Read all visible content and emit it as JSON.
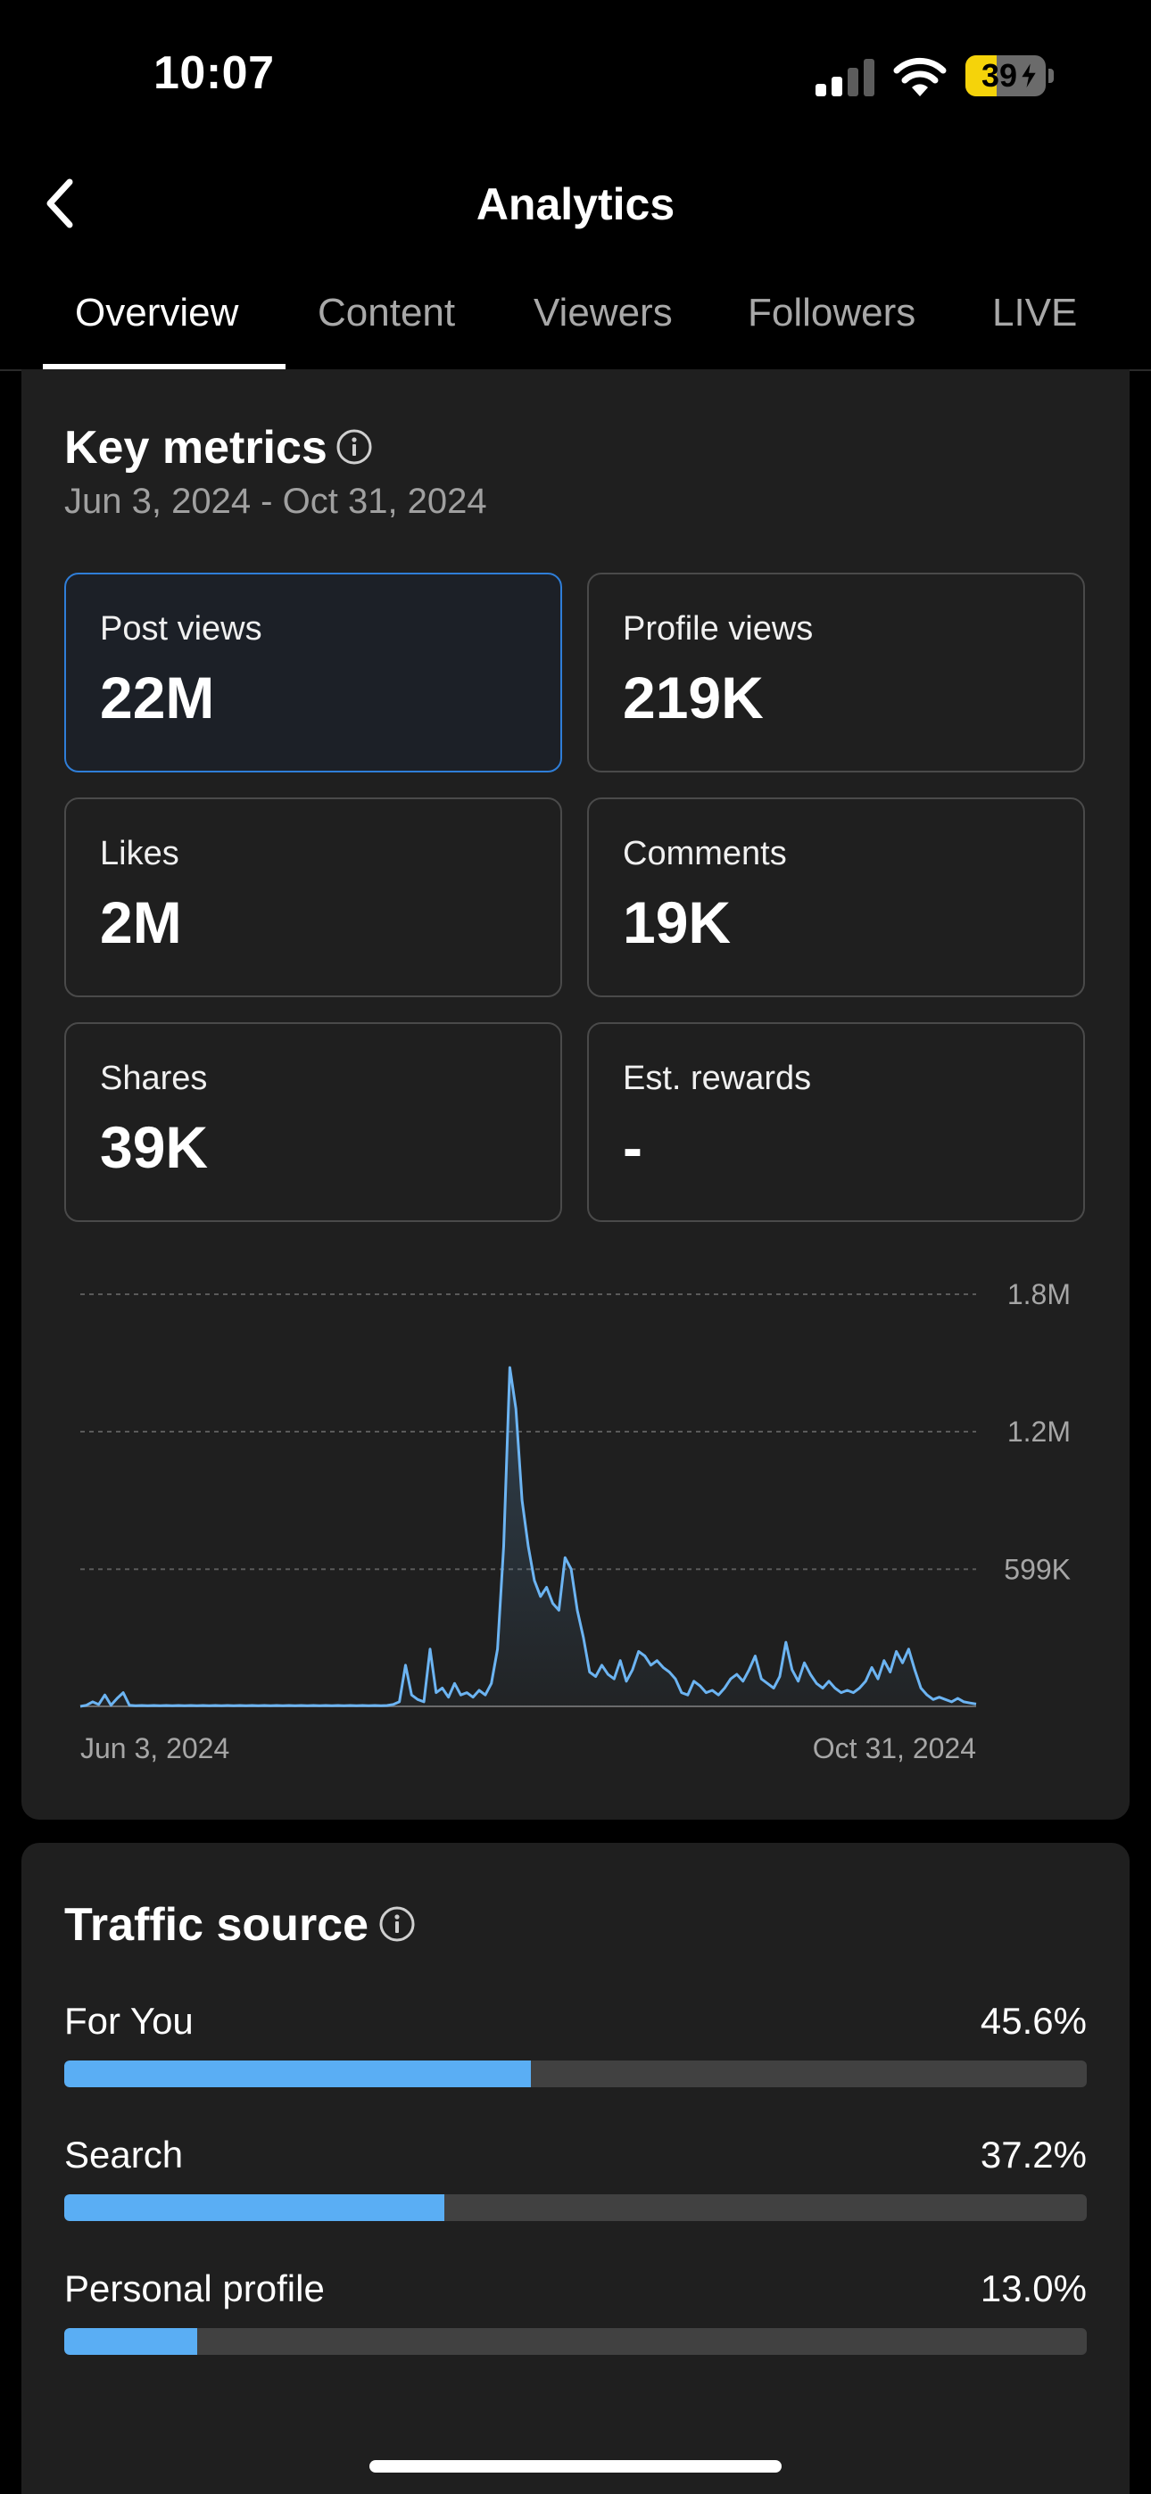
{
  "status_bar": {
    "time": "10:07",
    "battery_level": "39",
    "battery_fraction": 0.39,
    "battery_color": "#f5d30a",
    "icons": [
      "signal-icon",
      "wifi-icon",
      "battery-charging-icon"
    ]
  },
  "header": {
    "title": "Analytics",
    "back_icon": "chevron-left-icon"
  },
  "tabs": [
    {
      "label": "Overview",
      "active": true
    },
    {
      "label": "Content",
      "active": false
    },
    {
      "label": "Viewers",
      "active": false
    },
    {
      "label": "Followers",
      "active": false
    },
    {
      "label": "LIVE",
      "active": false
    }
  ],
  "key_metrics": {
    "title": "Key metrics",
    "date_range": "Jun 3, 2024 - Oct 31, 2024",
    "tiles": [
      {
        "label": "Post views",
        "value": "22M",
        "selected": true
      },
      {
        "label": "Profile views",
        "value": "219K",
        "selected": false
      },
      {
        "label": "Likes",
        "value": "2M",
        "selected": false
      },
      {
        "label": "Comments",
        "value": "19K",
        "selected": false
      },
      {
        "label": "Shares",
        "value": "39K",
        "selected": false
      },
      {
        "label": "Est. rewards",
        "value": "-",
        "selected": false
      }
    ]
  },
  "chart_data": {
    "type": "area",
    "series": [
      {
        "values": [
          0,
          5000,
          20000,
          8000,
          50000,
          5000,
          35000,
          60000,
          5000,
          3000,
          4000,
          3000,
          4000,
          3000,
          4000,
          3000,
          4000,
          3000,
          4000,
          3000,
          4000,
          3000,
          4000,
          3000,
          4000,
          3000,
          4000,
          3000,
          4000,
          3000,
          4000,
          3000,
          4000,
          3000,
          4000,
          3000,
          4000,
          3000,
          4000,
          3000,
          4000,
          3000,
          4000,
          3000,
          4000,
          3000,
          4000,
          3000,
          4000,
          3000,
          4000,
          8000,
          20000,
          180000,
          50000,
          30000,
          20000,
          250000,
          60000,
          80000,
          40000,
          100000,
          50000,
          60000,
          40000,
          70000,
          50000,
          100000,
          250000,
          700000,
          1480000,
          1300000,
          900000,
          700000,
          550000,
          480000,
          520000,
          450000,
          420000,
          650000,
          600000,
          420000,
          300000,
          150000,
          130000,
          180000,
          140000,
          120000,
          200000,
          110000,
          160000,
          240000,
          220000,
          180000,
          200000,
          170000,
          150000,
          120000,
          60000,
          50000,
          110000,
          90000,
          60000,
          70000,
          50000,
          80000,
          120000,
          140000,
          110000,
          160000,
          220000,
          120000,
          100000,
          80000,
          130000,
          280000,
          160000,
          110000,
          190000,
          140000,
          100000,
          80000,
          110000,
          80000,
          60000,
          70000,
          60000,
          80000,
          110000,
          170000,
          120000,
          200000,
          150000,
          240000,
          190000,
          250000,
          160000,
          80000,
          50000,
          30000,
          40000,
          30000,
          20000,
          35000,
          20000,
          15000,
          10000
        ]
      }
    ],
    "x_tick_labels": [
      "Jun 3, 2024",
      "Oct 31, 2024"
    ],
    "y_tick_labels": [
      "1.8M",
      "1.2M",
      "599K"
    ],
    "y_ticks": [
      1800000,
      1200000,
      599000
    ],
    "ylim": [
      0,
      1800000
    ],
    "grid": true,
    "line_color": "#6cb4f2"
  },
  "traffic_source": {
    "title": "Traffic source",
    "items": [
      {
        "label": "For You",
        "value": "45.6%",
        "fraction": 0.456
      },
      {
        "label": "Search",
        "value": "37.2%",
        "fraction": 0.372
      },
      {
        "label": "Personal profile",
        "value": "13.0%",
        "fraction": 0.13
      }
    ],
    "bar_color": "#5aaef4"
  }
}
